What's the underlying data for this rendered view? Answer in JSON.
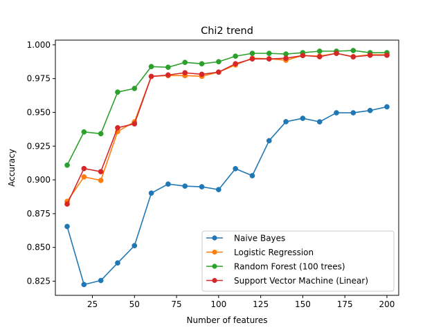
{
  "chart_data": {
    "type": "line",
    "title": "Chi2 trend",
    "xlabel": "Number of features",
    "ylabel": "Accuracy",
    "xlim": [
      3,
      207
    ],
    "ylim": [
      0.8145,
      1.0035
    ],
    "x_ticks": [
      25,
      50,
      75,
      100,
      125,
      150,
      175,
      200
    ],
    "x_tick_labels": [
      "25",
      "50",
      "75",
      "100",
      "125",
      "150",
      "175",
      "200"
    ],
    "y_ticks": [
      0.825,
      0.85,
      0.875,
      0.9,
      0.925,
      0.95,
      0.975,
      1.0
    ],
    "y_tick_labels": [
      "0.825",
      "0.850",
      "0.875",
      "0.900",
      "0.925",
      "0.950",
      "0.975",
      "1.000"
    ],
    "grid": false,
    "legend_position": "lower-right",
    "x": [
      10,
      20,
      30,
      40,
      50,
      60,
      70,
      80,
      90,
      100,
      110,
      120,
      130,
      140,
      150,
      160,
      170,
      180,
      190,
      200
    ],
    "series": [
      {
        "name": "Naive Bayes",
        "color": "#1f77b4",
        "values": [
          0.8655,
          0.8225,
          0.8255,
          0.8385,
          0.8513,
          0.8902,
          0.8969,
          0.8954,
          0.8949,
          0.8928,
          0.9083,
          0.9031,
          0.929,
          0.9431,
          0.9456,
          0.943,
          0.9497,
          0.9497,
          0.9514,
          0.9541
        ]
      },
      {
        "name": "Logistic Regression",
        "color": "#ff7f0e",
        "values": [
          0.8841,
          0.9022,
          0.8996,
          0.9358,
          0.943,
          0.9767,
          0.9772,
          0.9772,
          0.9767,
          0.9798,
          0.9851,
          0.9901,
          0.9897,
          0.9886,
          0.9921,
          0.9917,
          0.9937,
          0.9913,
          0.9927,
          0.9927
        ]
      },
      {
        "name": "Random Forest (100 trees)",
        "color": "#2ca02c",
        "values": [
          0.9109,
          0.9355,
          0.9342,
          0.965,
          0.9677,
          0.9839,
          0.9834,
          0.987,
          0.986,
          0.9875,
          0.9916,
          0.9937,
          0.9937,
          0.9932,
          0.9942,
          0.9953,
          0.9953,
          0.9958,
          0.9942,
          0.9942
        ]
      },
      {
        "name": "Support Vector Machine (Linear)",
        "color": "#d62728",
        "values": [
          0.8821,
          0.9084,
          0.9061,
          0.9386,
          0.9415,
          0.9766,
          0.9777,
          0.9793,
          0.9782,
          0.9798,
          0.986,
          0.9896,
          0.9896,
          0.9901,
          0.9921,
          0.9912,
          0.9937,
          0.9911,
          0.9923,
          0.9923
        ]
      }
    ]
  }
}
